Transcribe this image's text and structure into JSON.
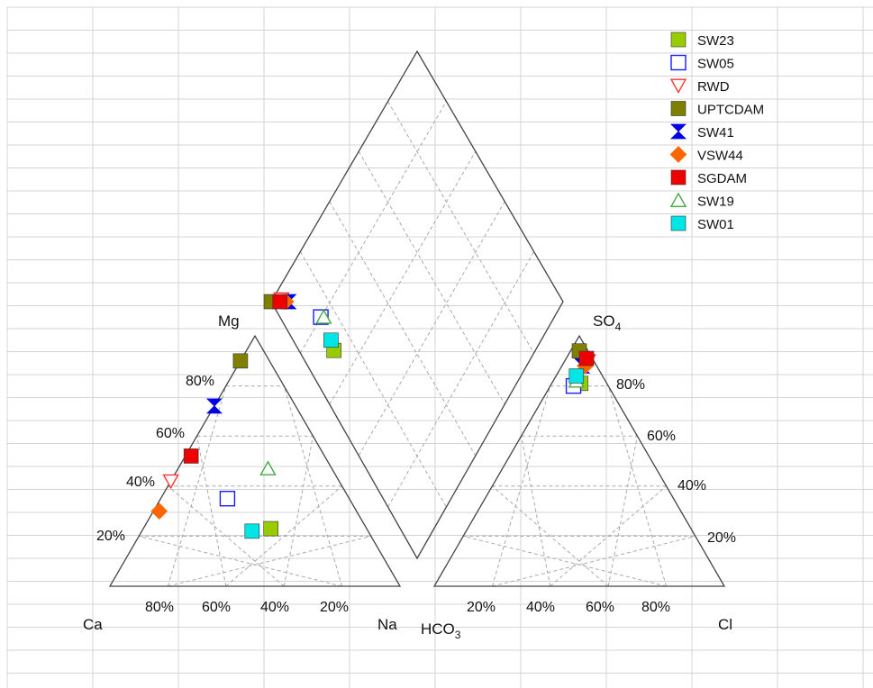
{
  "chart_data": {
    "type": "scatter",
    "subtype": "piper-diagram",
    "grid": true,
    "legend_position": "top-right",
    "labels": {
      "mg": "Mg",
      "ca": "Ca",
      "na": "Na",
      "hco3_main": "HCO",
      "hco3_sub": "3",
      "so4_main": "SO",
      "so4_sub": "4",
      "cl": "Cl"
    },
    "cation_axis_ticks": [
      "80%",
      "60%",
      "40%",
      "20%"
    ],
    "cation_mg_ticks": [
      "20%",
      "40%",
      "60%",
      "80%"
    ],
    "anion_axis_ticks": [
      "20%",
      "40%",
      "60%",
      "80%"
    ],
    "anion_so4_ticks": [
      "80%",
      "60%",
      "40%",
      "20%"
    ],
    "series": [
      {
        "name": "SW23",
        "marker": "square-filled",
        "color": "#99cc00",
        "cation": {
          "Ca": 33,
          "Mg": 23,
          "Na": 44
        },
        "anion": {
          "HCO3": 9,
          "SO4": 81,
          "Cl": 10
        },
        "diamond": [
          0.12,
          0.69
        ]
      },
      {
        "name": "SW05",
        "marker": "square-open",
        "color": "#1a1aff",
        "cation": {
          "Ca": 42,
          "Mg": 35,
          "Na": 23
        },
        "anion": {
          "HCO3": 12,
          "SO4": 80,
          "Cl": 8
        },
        "diamond": [
          0.14,
          0.8
        ]
      },
      {
        "name": "RWD",
        "marker": "triangle-down-open",
        "color": "#ff3333",
        "cation": {
          "Ca": 66,
          "Mg": 42,
          "Na": 0
        },
        "anion": {
          "HCO3": 2,
          "SO4": 90,
          "Cl": 8
        },
        "diamond": [
          0.04,
          0.97
        ]
      },
      {
        "name": "UPTCDAM",
        "marker": "square-filled",
        "color": "#808000",
        "cation": {
          "Ca": 10,
          "Mg": 90,
          "Na": 0
        },
        "anion": {
          "HCO3": 3,
          "SO4": 94,
          "Cl": 3
        },
        "diamond": [
          0.0,
          1.0
        ]
      },
      {
        "name": "SW41",
        "marker": "hourglass-filled",
        "color": "#0000e6",
        "cation": {
          "Ca": 28,
          "Mg": 72,
          "Na": 0
        },
        "anion": {
          "HCO3": 5,
          "SO4": 88,
          "Cl": 7
        },
        "diamond": [
          0.06,
          0.94
        ]
      },
      {
        "name": "VSW44",
        "marker": "diamond-filled",
        "color": "#ff6600",
        "cation": {
          "Ca": 68,
          "Mg": 30,
          "Na": 2
        },
        "anion": {
          "HCO3": 4,
          "SO4": 88,
          "Cl": 8
        },
        "diamond": [
          0.05,
          0.95
        ]
      },
      {
        "name": "SGDAM",
        "marker": "square-filled",
        "color": "#ee0000",
        "cation": {
          "Ca": 46,
          "Mg": 52,
          "Na": 2
        },
        "anion": {
          "HCO3": 2,
          "SO4": 91,
          "Cl": 7
        },
        "diamond": [
          0.03,
          0.97
        ]
      },
      {
        "name": "SW19",
        "marker": "triangle-up-open",
        "color": "#44aa44",
        "cation": {
          "Ca": 22,
          "Mg": 47,
          "Na": 31
        },
        "anion": {
          "HCO3": 10,
          "SO4": 82,
          "Cl": 8
        },
        "diamond": [
          0.15,
          0.79
        ]
      },
      {
        "name": "SW01",
        "marker": "square-filled",
        "color": "#00e5e5",
        "cation": {
          "Ca": 40,
          "Mg": 22,
          "Na": 38
        },
        "anion": {
          "HCO3": 9,
          "SO4": 84,
          "Cl": 7
        },
        "diamond": [
          0.13,
          0.72
        ]
      }
    ]
  }
}
